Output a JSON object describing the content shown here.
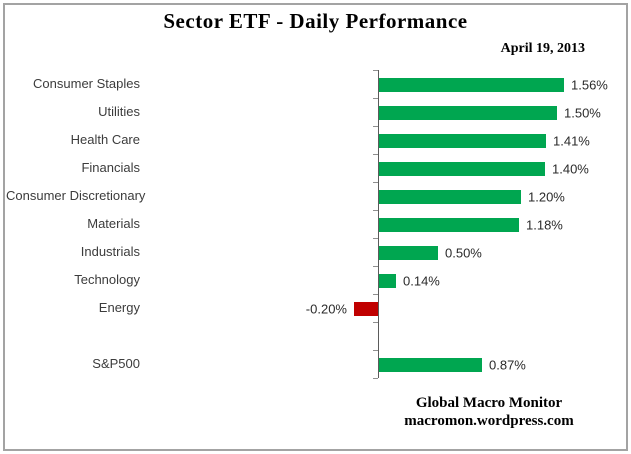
{
  "header": {
    "title": "Sector ETF - Daily Performance",
    "date": "April 19, 2013"
  },
  "footer": {
    "line1": "Global Macro Monitor",
    "line2": "macromon.wordpress.com"
  },
  "chart_data": {
    "type": "bar",
    "orientation": "horizontal",
    "title": "Sector ETF - Daily Performance",
    "subtitle": "April 19, 2013",
    "categories": [
      "Consumer Staples",
      "Utilities",
      "Health Care",
      "Financials",
      "Consumer Discretionary",
      "Materials",
      "Industrials",
      "Technology",
      "Energy",
      "",
      "S&P500"
    ],
    "values": [
      1.56,
      1.5,
      1.41,
      1.4,
      1.2,
      1.18,
      0.5,
      0.14,
      -0.2,
      null,
      0.87
    ],
    "value_labels": [
      "1.56%",
      "1.50%",
      "1.41%",
      "1.40%",
      "1.20%",
      "1.18%",
      "0.50%",
      "0.14%",
      "-0.20%",
      "",
      "0.87%"
    ],
    "colors": {
      "positive": "#00A650",
      "negative": "#C00000"
    },
    "xlim": [
      -0.4,
      1.6
    ],
    "grid": false,
    "legend": false,
    "value_axis_labels_visible": false
  }
}
